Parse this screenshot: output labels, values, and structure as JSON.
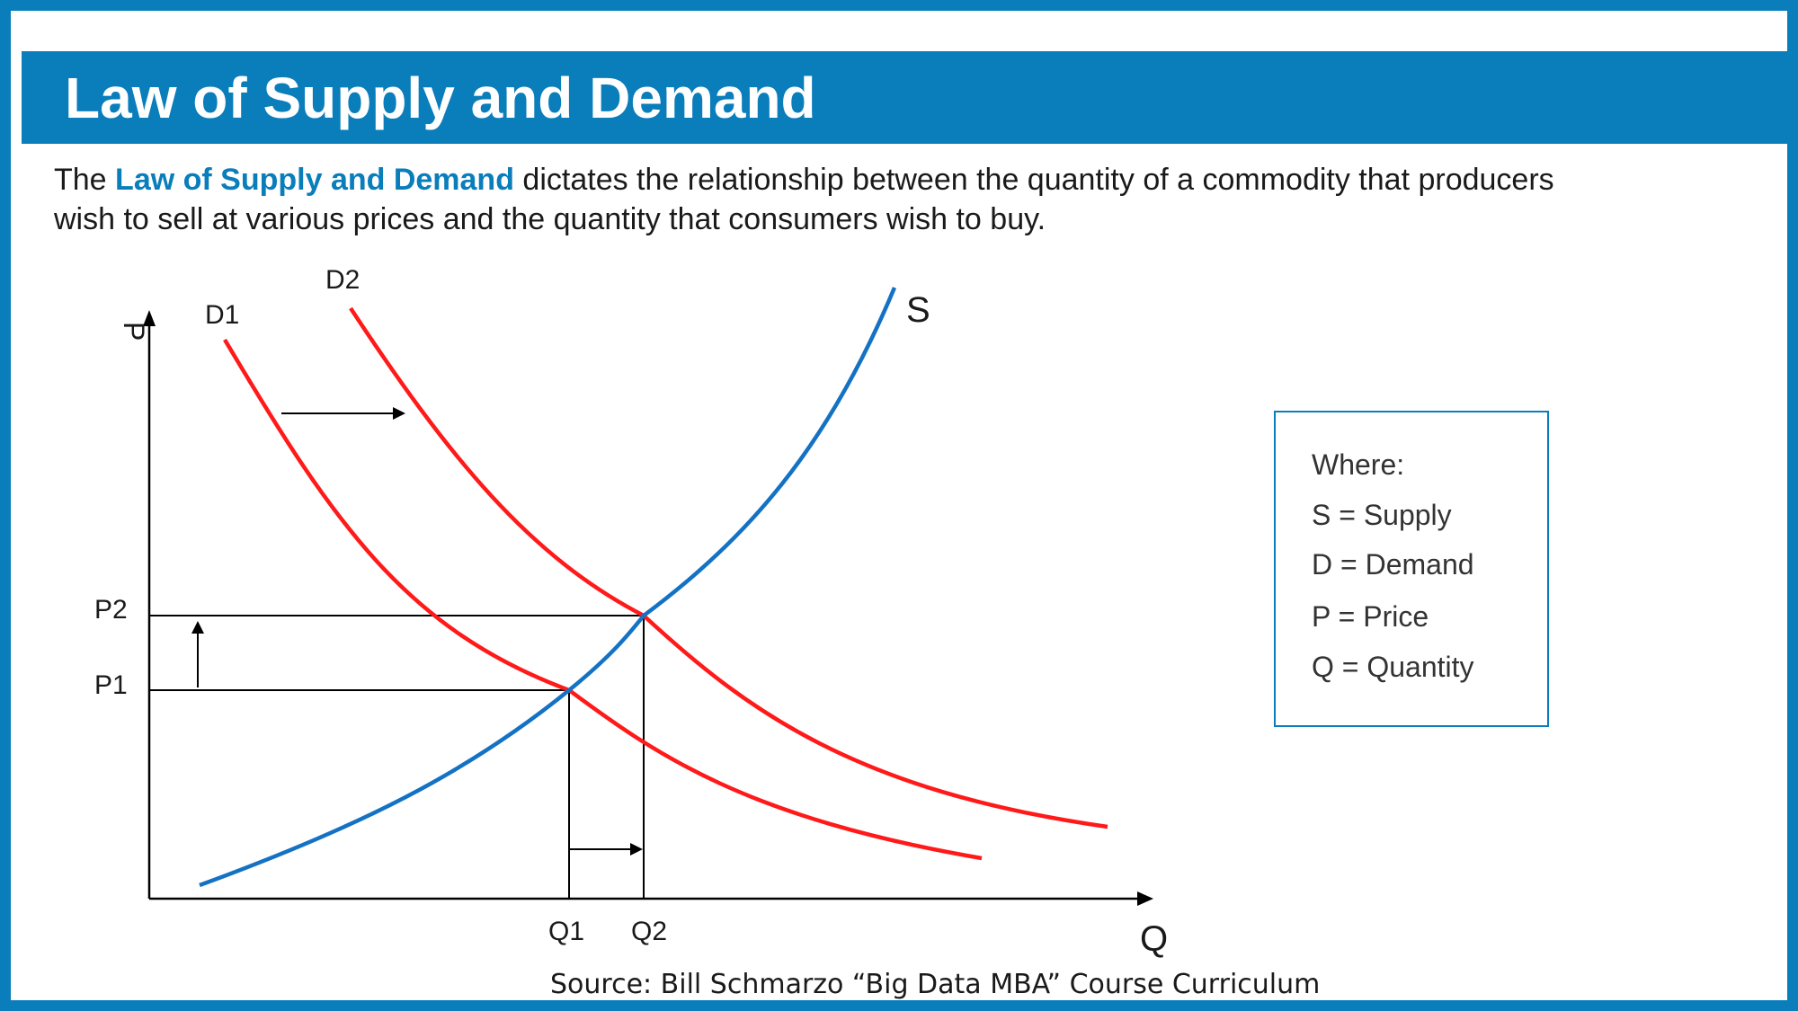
{
  "header": {
    "title": "Law of Supply and Demand"
  },
  "intro": {
    "prefix": "The ",
    "highlight": "Law of Supply and Demand",
    "rest": " dictates the relationship between the quantity of a commodity that producers wish to sell at various prices and the quantity that consumers wish to buy."
  },
  "diagram": {
    "axis_y_label": "P",
    "axis_x_label": "Q",
    "curves": {
      "supply": "S",
      "demand_1": "D1",
      "demand_2": "D2"
    },
    "price_ticks": [
      "P2",
      "P1"
    ],
    "quantity_ticks": [
      "Q1",
      "Q2"
    ],
    "colors": {
      "supply": "#1472c4",
      "demand": "#ff1a1a",
      "accent": "#0a7dbb"
    }
  },
  "legend": {
    "heading": "Where:",
    "items": [
      "S = Supply",
      "D = Demand",
      "P = Price",
      "Q = Quantity"
    ]
  },
  "source": "Source: Bill Schmarzo “Big Data MBA” Course Curriculum"
}
